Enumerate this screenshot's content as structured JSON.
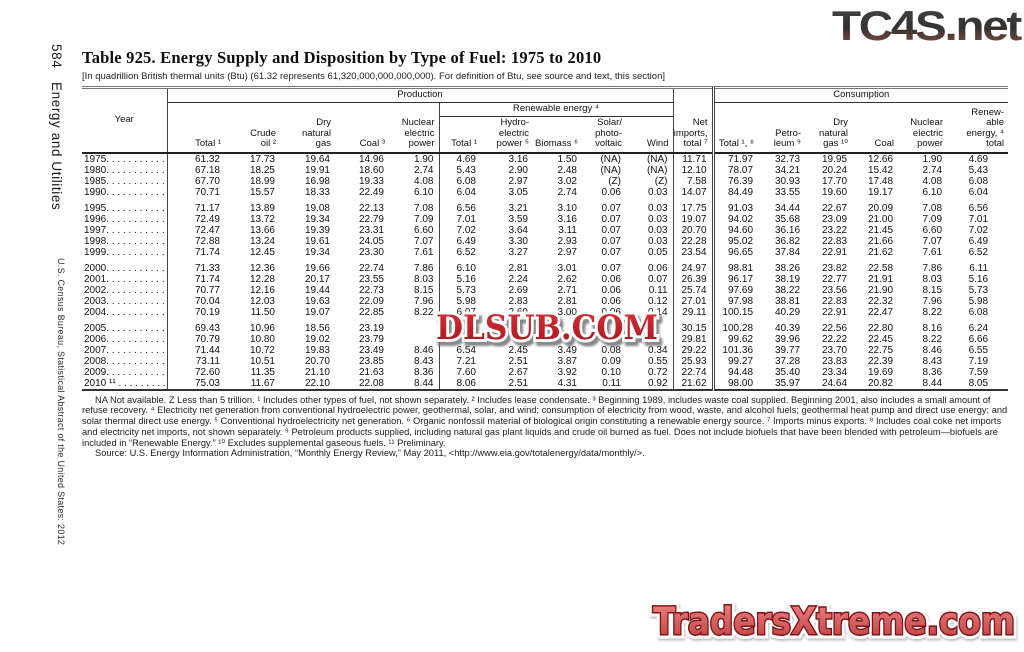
{
  "sidebar": {
    "page_number": "584",
    "section": "Energy and Utilities",
    "imprint": "U.S. Census Bureau, Statistical Abstract of the United States: 2012"
  },
  "header": {
    "title": "Table 925. Energy Supply and Disposition by Type of Fuel: 1975 to 2010",
    "subtitle": "[In quadrillion British thermal units (Btu) (61.32 represents 61,320,000,000,000,000). For definition of Btu, see source and text, this section]"
  },
  "watermarks": {
    "top_right": "TC4S.net",
    "center": "DLSUB.COM",
    "bottom_right": "TradersXtreme.com"
  },
  "table": {
    "groups": {
      "year": "Year",
      "production": "Production",
      "renewable": "Renewable energy ⁴",
      "net_imports": "Net\nimports,\ntotal ⁷",
      "consumption": "Consumption"
    },
    "prod_cols": [
      "Total ¹",
      "Crude\noil ²",
      "Dry\nnatural\ngas",
      "Coal ³",
      "Nuclear\nelectric\npower"
    ],
    "renew_cols": [
      "Total ¹",
      "Hydro-\nelectric\npower ⁵",
      "Biomass ⁶",
      "Solar/\nphoto-\nvoltaic",
      "Wind"
    ],
    "cons_cols": [
      "Total ¹, ⁸",
      "Petro-\nleum ⁹",
      "Dry\nnatural\ngas ¹⁰",
      "Coal",
      "Nuclear\nelectric\npower",
      "Renew-\nable\nenergy, ⁴\ntotal"
    ],
    "row_groups": [
      [
        [
          "1975. . . . . . . . . . . . . . .",
          "61.32",
          "17.73",
          "19.64",
          "14.96",
          "1.90",
          "4.69",
          "3.16",
          "1.50",
          "(NA)",
          "(NA)",
          "11.71",
          "71.97",
          "32.73",
          "19.95",
          "12.66",
          "1.90",
          "4.69"
        ],
        [
          "1980. . . . . . . . . . . . . . .",
          "67.18",
          "18.25",
          "19.91",
          "18.60",
          "2.74",
          "5.43",
          "2.90",
          "2.48",
          "(NA)",
          "(NA)",
          "12.10",
          "78.07",
          "34.21",
          "20.24",
          "15.42",
          "2.74",
          "5.43"
        ],
        [
          "1985. . . . . . . . . . . . . . .",
          "67.70",
          "18.99",
          "16.98",
          "19.33",
          "4.08",
          "6.08",
          "2.97",
          "3.02",
          "(Z)",
          "(Z)",
          "7.58",
          "76.39",
          "30.93",
          "17.70",
          "17.48",
          "4.08",
          "6.08"
        ],
        [
          "1990. . . . . . . . . . . . . . .",
          "70.71",
          "15.57",
          "18.33",
          "22.49",
          "6.10",
          "6.04",
          "3.05",
          "2.74",
          "0.06",
          "0.03",
          "14.07",
          "84.49",
          "33.55",
          "19.60",
          "19.17",
          "6.10",
          "6.04"
        ]
      ],
      [
        [
          "1995. . . . . . . . . . . . . . .",
          "71.17",
          "13.89",
          "19.08",
          "22.13",
          "7.08",
          "6.56",
          "3.21",
          "3.10",
          "0.07",
          "0.03",
          "17.75",
          "91.03",
          "34.44",
          "22.67",
          "20.09",
          "7.08",
          "6.56"
        ],
        [
          "1996. . . . . . . . . . . . . . .",
          "72.49",
          "13.72",
          "19.34",
          "22.79",
          "7.09",
          "7.01",
          "3.59",
          "3.16",
          "0.07",
          "0.03",
          "19.07",
          "94.02",
          "35.68",
          "23.09",
          "21.00",
          "7.09",
          "7.01"
        ],
        [
          "1997. . . . . . . . . . . . . . .",
          "72.47",
          "13.66",
          "19.39",
          "23.31",
          "6.60",
          "7.02",
          "3.64",
          "3.11",
          "0.07",
          "0.03",
          "20.70",
          "94.60",
          "36.16",
          "23.22",
          "21.45",
          "6.60",
          "7.02"
        ],
        [
          "1998. . . . . . . . . . . . . . .",
          "72.88",
          "13.24",
          "19.61",
          "24.05",
          "7.07",
          "6.49",
          "3.30",
          "2.93",
          "0.07",
          "0.03",
          "22.28",
          "95.02",
          "36.82",
          "22.83",
          "21.66",
          "7.07",
          "6.49"
        ],
        [
          "1999. . . . . . . . . . . . . . .",
          "71.74",
          "12.45",
          "19.34",
          "23.30",
          "7.61",
          "6.52",
          "3.27",
          "2.97",
          "0.07",
          "0.05",
          "23.54",
          "96.65",
          "37.84",
          "22.91",
          "21.62",
          "7.61",
          "6.52"
        ]
      ],
      [
        [
          "2000. . . . . . . . . . . . . . .",
          "71.33",
          "12.36",
          "19.66",
          "22.74",
          "7.86",
          "6.10",
          "2.81",
          "3.01",
          "0.07",
          "0.06",
          "24.97",
          "98.81",
          "38.26",
          "23.82",
          "22.58",
          "7.86",
          "6.11"
        ],
        [
          "2001. . . . . . . . . . . . . . .",
          "71.74",
          "12.28",
          "20.17",
          "23.55",
          "8.03",
          "5.16",
          "2.24",
          "2.62",
          "0.06",
          "0.07",
          "26.39",
          "96.17",
          "38.19",
          "22.77",
          "21.91",
          "8.03",
          "5.16"
        ],
        [
          "2002. . . . . . . . . . . . . . .",
          "70.77",
          "12.16",
          "19.44",
          "22.73",
          "8.15",
          "5.73",
          "2.69",
          "2.71",
          "0.06",
          "0.11",
          "25.74",
          "97.69",
          "38.22",
          "23.56",
          "21.90",
          "8.15",
          "5.73"
        ],
        [
          "2003. . . . . . . . . . . . . . .",
          "70.04",
          "12.03",
          "19.63",
          "22.09",
          "7.96",
          "5.98",
          "2.83",
          "2.81",
          "0.06",
          "0.12",
          "27.01",
          "97.98",
          "38.81",
          "22.83",
          "22.32",
          "7.96",
          "5.98"
        ],
        [
          "2004. . . . . . . . . . . . . . .",
          "70.19",
          "11.50",
          "19.07",
          "22.85",
          "8.22",
          "6.07",
          "2.69",
          "3.00",
          "0.06",
          "0.14",
          "29.11",
          "100.15",
          "40.29",
          "22.91",
          "22.47",
          "8.22",
          "6.08"
        ]
      ],
      [
        [
          "2005. . . . . . . . . . . . . . .",
          "69.43",
          "10.96",
          "18.56",
          "23.19",
          "",
          "",
          "",
          "",
          "",
          "",
          "30.15",
          "100.28",
          "40.39",
          "22.56",
          "22.80",
          "8.16",
          "6.24"
        ],
        [
          "2006. . . . . . . . . . . . . . .",
          "70.79",
          "10.80",
          "19.02",
          "23.79",
          "",
          "",
          "",
          "",
          "",
          "",
          "29.81",
          "99.62",
          "39.96",
          "22.22",
          "22.45",
          "8.22",
          "6.66"
        ],
        [
          "2007. . . . . . . . . . . . . . .",
          "71.44",
          "10.72",
          "19.83",
          "23.49",
          "8.46",
          "6.54",
          "2.45",
          "3.49",
          "0.08",
          "0.34",
          "29.22",
          "101.36",
          "39.77",
          "23.70",
          "22.75",
          "8.46",
          "6.55"
        ],
        [
          "2008. . . . . . . . . . . . . . .",
          "73.11",
          "10.51",
          "20.70",
          "23.85",
          "8.43",
          "7.21",
          "2.51",
          "3.87",
          "0.09",
          "0.55",
          "25.93",
          "99.27",
          "37.28",
          "23.83",
          "22.39",
          "8.43",
          "7.19"
        ],
        [
          "2009. . . . . . . . . . . . . . .",
          "72.60",
          "11.35",
          "21.10",
          "21.63",
          "8.36",
          "7.60",
          "2.67",
          "3.92",
          "0.10",
          "0.72",
          "22.74",
          "94.48",
          "35.40",
          "23.34",
          "19.69",
          "8.36",
          "7.59"
        ],
        [
          "2010 ¹¹ . . . . . . . . . . . . .",
          "75.03",
          "11.67",
          "22.10",
          "22.08",
          "8.44",
          "8.06",
          "2.51",
          "4.31",
          "0.11",
          "0.92",
          "21.62",
          "98.00",
          "35.97",
          "24.64",
          "20.82",
          "8.44",
          "8.05"
        ]
      ]
    ]
  },
  "footnotes": {
    "notes": "NA Not available. Z Less than 5 trillion. ¹ Includes other types of fuel, not shown separately. ² Includes lease condensate. ³ Beginning 1989, includes waste coal supplied. Beginning 2001, also includes a small amount of refuse recovery. ⁴ Electricity net generation from conventional hydroelectric power, geothermal, solar, and wind; consumption of electricity from wood, waste, and alcohol fuels; geothermal heat pump and direct use energy; and solar thermal direct use energy. ⁵ Conventional hydroelectricity net generation. ⁶ Organic nonfossil material of biological origin constituting a renewable energy source. ⁷ Imports minus exports. ⁸ Includes coal coke net imports and electricity net imports, not shown separately. ⁹ Petroleum products supplied, including natural gas plant liquids and crude oil burned as fuel. Does not include biofuels that have been blended with petroleum—biofuels are included in “Renewable Energy.” ¹⁰ Excludes supplemental gaseous fuels. ¹¹ Preliminary.",
    "source": "Source: U.S. Energy Information Administration, “Monthly Energy Review,” May 2011, <http://www.eia.gov/totalenergy/data/monthly/>."
  }
}
